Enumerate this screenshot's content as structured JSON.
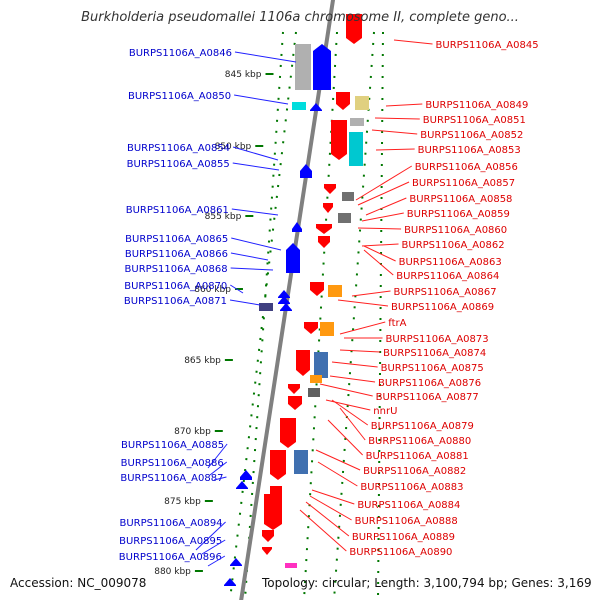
{
  "title": "Burkholderia pseudomallei 1106a chromosome II, complete geno...",
  "footer": {
    "accession": "Accession: NC_009078",
    "topology": "Topology: circular; Length: 3,100,794 bp; Genes: 3,169"
  },
  "colors": {
    "left_label": "#0000cc",
    "right_label": "#dd0000",
    "forward_gene": "#ff0000",
    "reverse_gene": "#0000ff",
    "tick": "#007700",
    "backbone": "#808080"
  },
  "kbp_ticks": [
    "845 kbp",
    "850 kbp",
    "855 kbp",
    "860 kbp",
    "865 kbp",
    "870 kbp",
    "875 kbp",
    "880 kbp"
  ],
  "left_genes": [
    "BURPS1106A_A0846",
    "BURPS1106A_A0850",
    "BURPS1106A_A0854",
    "BURPS1106A_A0855",
    "BURPS1106A_A0861",
    "BURPS1106A_A0865",
    "BURPS1106A_A0866",
    "BURPS1106A_A0868",
    "BURPS1106A_A0870",
    "BURPS1106A_A0871",
    "BURPS1106A_A0885",
    "BURPS1106A_A0886",
    "BURPS1106A_A0887",
    "BURPS1106A_A0894",
    "BURPS1106A_A0895",
    "BURPS1106A_A0896"
  ],
  "right_genes": [
    "BURPS1106A_A0845",
    "BURPS1106A_A0849",
    "BURPS1106A_A0851",
    "BURPS1106A_A0852",
    "BURPS1106A_A0853",
    "BURPS1106A_A0856",
    "BURPS1106A_A0857",
    "BURPS1106A_A0858",
    "BURPS1106A_A0859",
    "BURPS1106A_A0860",
    "BURPS1106A_A0862",
    "BURPS1106A_A0863",
    "BURPS1106A_A0864",
    "BURPS1106A_A0867",
    "BURPS1106A_A0869",
    "ftrA",
    "BURPS1106A_A0873",
    "BURPS1106A_A0874",
    "BURPS1106A_A0875",
    "BURPS1106A_A0876",
    "BURPS1106A_A0877",
    "nnrU",
    "BURPS1106A_A0879",
    "BURPS1106A_A0880",
    "BURPS1106A_A0881",
    "BURPS1106A_A0882",
    "BURPS1106A_A0883",
    "BURPS1106A_A0884",
    "BURPS1106A_A0888",
    "BURPS1106A_A0889",
    "BURPS1106A_A0890"
  ]
}
